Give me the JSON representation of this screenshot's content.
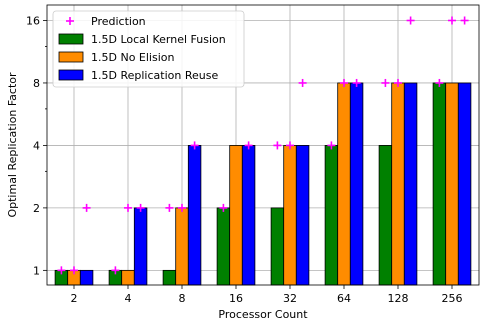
{
  "chart_data": {
    "type": "bar",
    "title": "",
    "xlabel": "Processor Count",
    "ylabel": "Optimal Replication Factor",
    "yscale": "log2",
    "ylim": [
      0.85,
      19
    ],
    "yticks": [
      1,
      2,
      4,
      8,
      16
    ],
    "grid": true,
    "legend_position": "top-left",
    "categories": [
      "2",
      "4",
      "8",
      "16",
      "32",
      "64",
      "128",
      "256"
    ],
    "series": [
      {
        "name": "1.5D Local Kernel Fusion",
        "color": "#008000",
        "values": [
          1,
          1,
          1,
          2,
          2,
          4,
          4,
          8
        ]
      },
      {
        "name": "1.5D No Elision",
        "color": "#ff8c00",
        "values": [
          1,
          1,
          2,
          4,
          4,
          8,
          8,
          8
        ]
      },
      {
        "name": "1.5D Replication Reuse",
        "color": "#0000ff",
        "values": [
          1,
          2,
          4,
          4,
          4,
          8,
          8,
          8
        ]
      }
    ],
    "prediction": {
      "name": "Prediction",
      "color": "#ff00ff",
      "marker": "plus",
      "values": [
        1,
        1,
        2,
        2,
        2,
        2,
        4,
        4,
        4,
        4,
        8,
        8,
        8,
        8,
        16,
        16
      ],
      "positions": [
        [
          0,
          -1
        ],
        [
          0,
          0
        ],
        [
          0,
          1
        ],
        [
          1,
          -1
        ],
        [
          1,
          0
        ],
        [
          1,
          1
        ],
        [
          2,
          -1
        ],
        [
          2,
          0
        ],
        [
          2,
          1
        ],
        [
          3,
          -1
        ],
        [
          3,
          1
        ],
        [
          4,
          -1
        ],
        [
          4,
          0
        ],
        [
          4,
          1
        ],
        [
          5,
          -1
        ],
        [
          5,
          0
        ],
        [
          5,
          1
        ],
        [
          6,
          -1
        ],
        [
          6,
          0
        ],
        [
          6,
          1
        ],
        [
          7,
          -1
        ],
        [
          7,
          0
        ],
        [
          7,
          1
        ]
      ],
      "point_values": [
        1,
        1,
        2,
        1,
        2,
        2,
        2,
        2,
        4,
        2,
        4,
        4,
        4,
        8,
        4,
        8,
        8,
        8,
        8,
        16,
        8,
        16,
        16
      ]
    }
  }
}
